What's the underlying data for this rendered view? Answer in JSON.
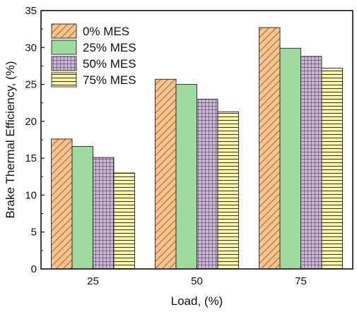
{
  "chart_data": {
    "type": "bar",
    "title": "",
    "xlabel": "Load, (%)",
    "ylabel": "Brake Thermal Efficiency, (%)",
    "categories": [
      "25",
      "50",
      "75"
    ],
    "ylim": [
      0,
      35
    ],
    "yticks": [
      "0",
      "5",
      "10",
      "15",
      "20",
      "25",
      "30",
      "35"
    ],
    "grid": false,
    "legend_position": "top-left",
    "series": [
      {
        "name": "0% MES",
        "values": [
          17.6,
          25.7,
          32.7
        ],
        "color": "#f6c493",
        "pattern": "diagonal-hatch"
      },
      {
        "name": "25% MES",
        "values": [
          16.6,
          25.0,
          29.9
        ],
        "color": "#9fdb9f",
        "pattern": "solid"
      },
      {
        "name": "50% MES",
        "values": [
          15.1,
          23.0,
          28.8
        ],
        "color": "#cbb6d6",
        "pattern": "crosshatch"
      },
      {
        "name": "75% MES",
        "values": [
          13.0,
          21.3,
          27.2
        ],
        "color": "#f8f6a4",
        "pattern": "horizontal-lines"
      }
    ]
  }
}
